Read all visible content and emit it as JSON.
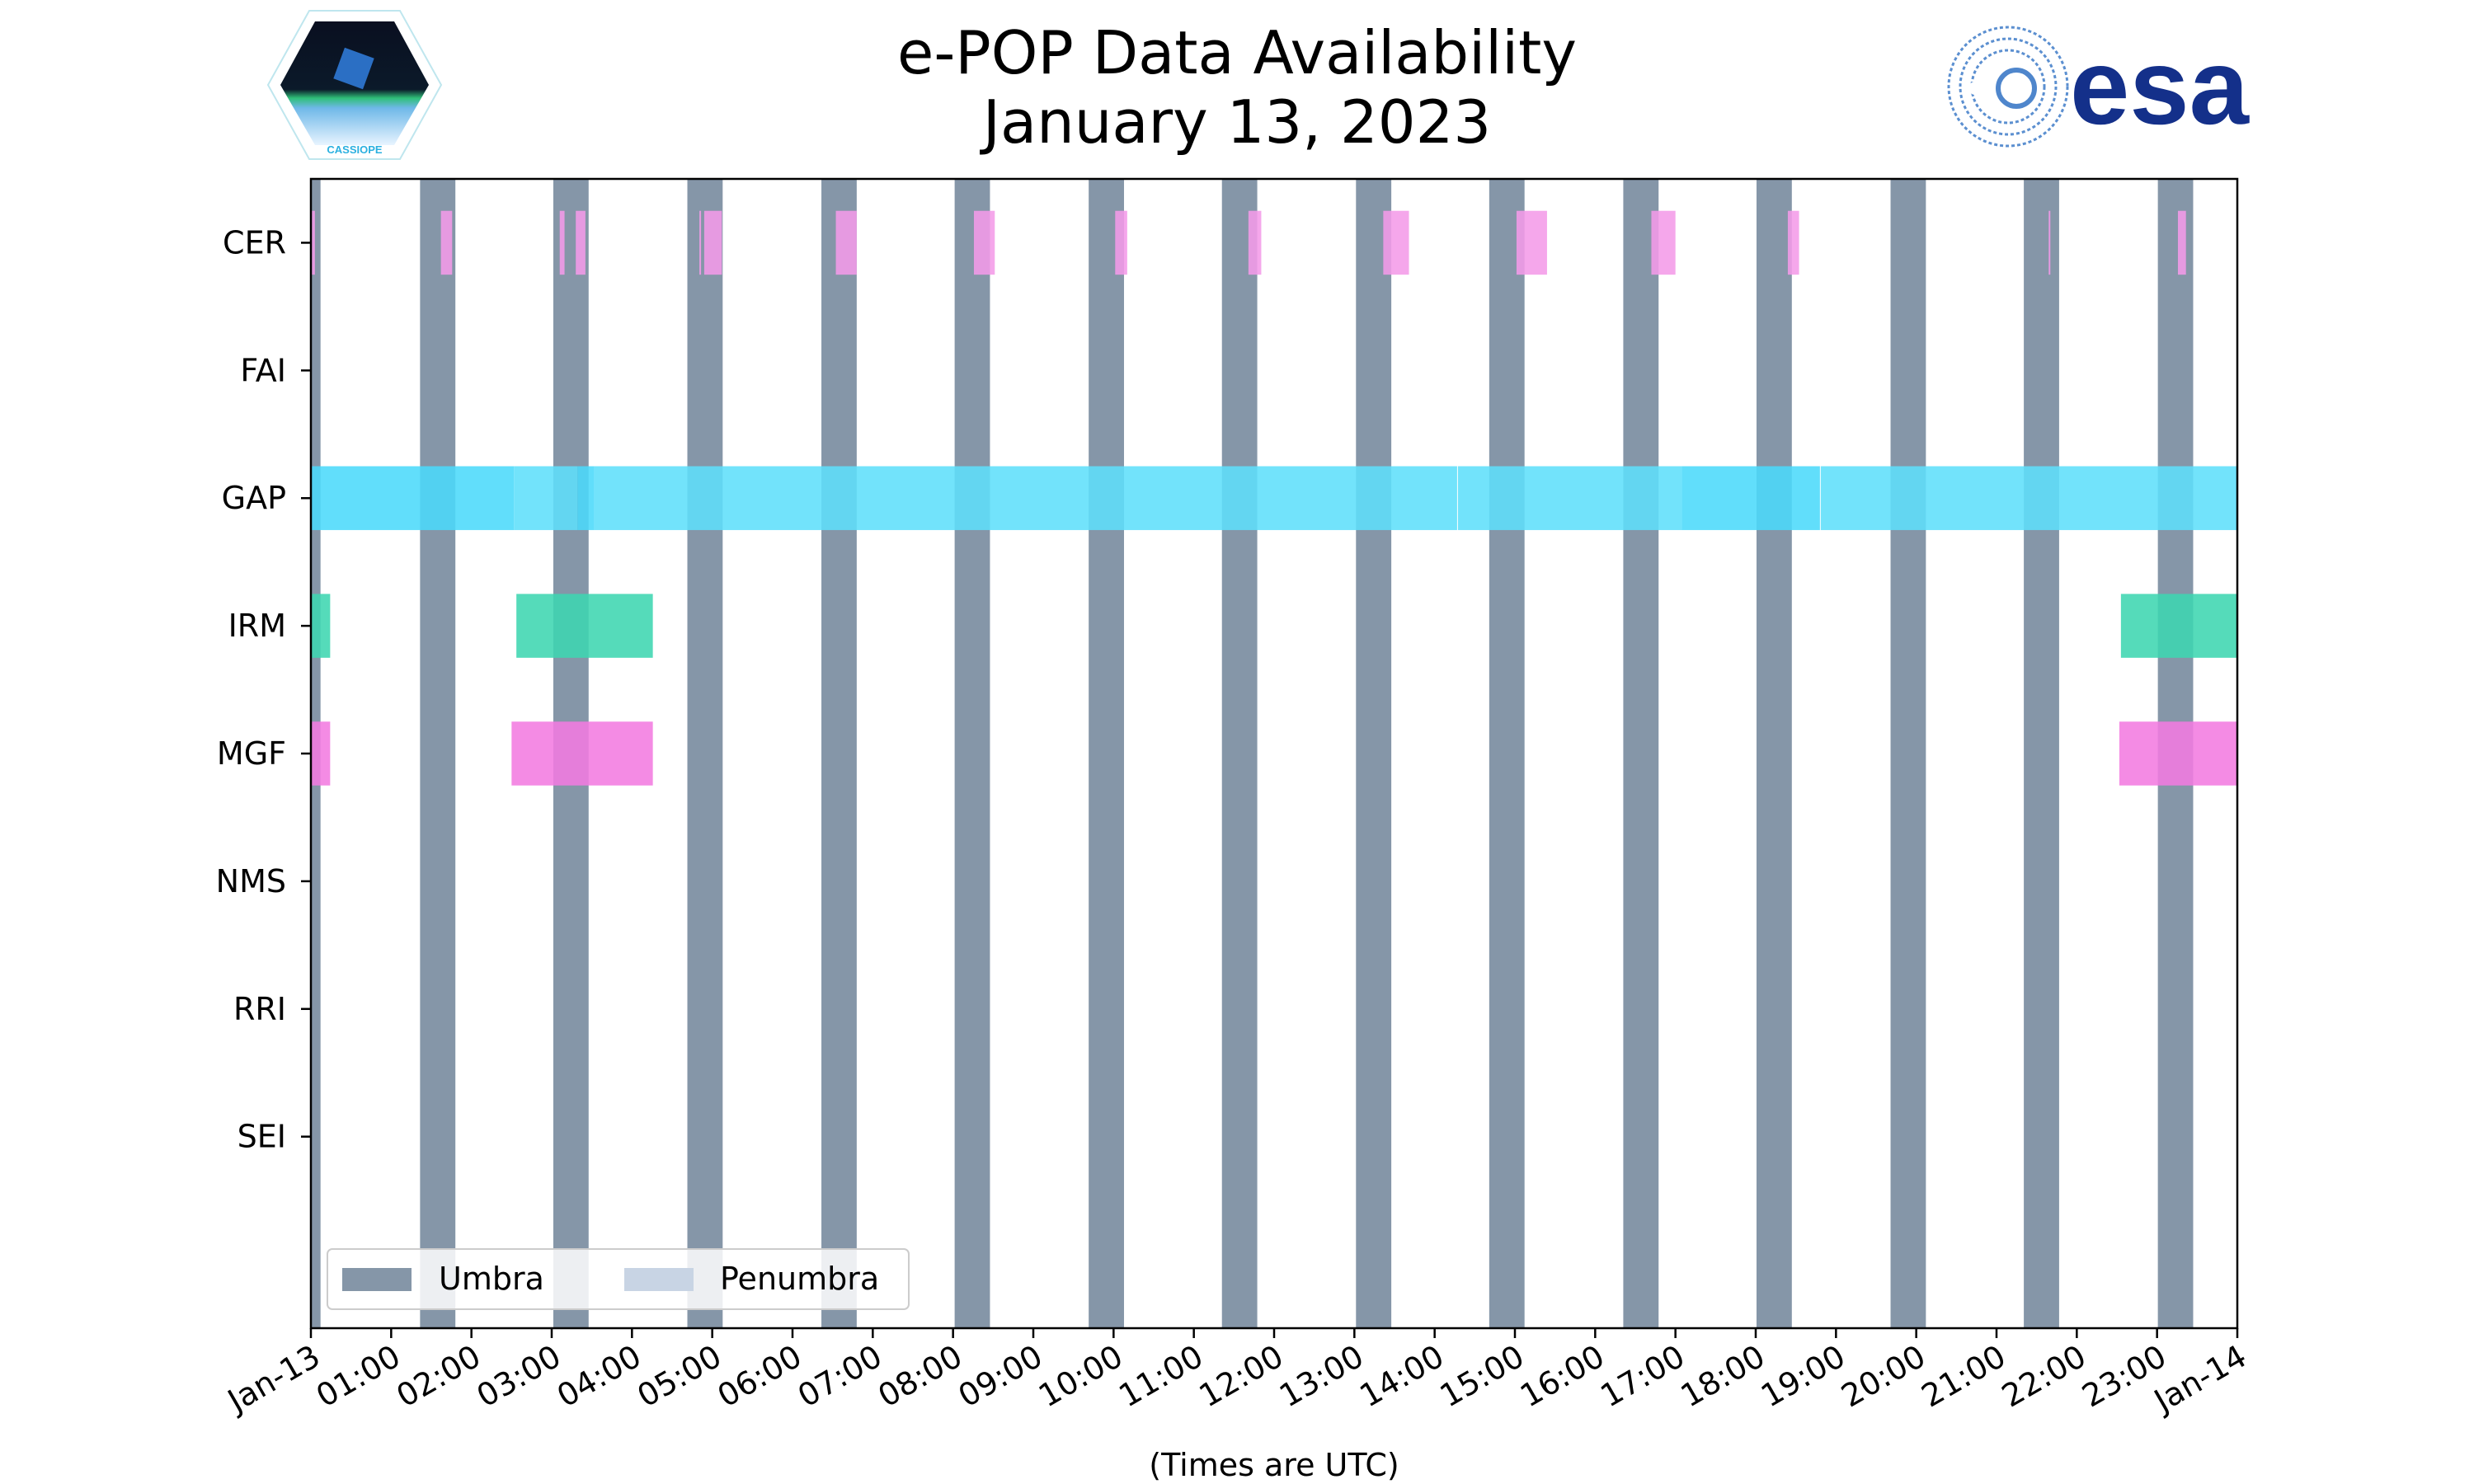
{
  "chart_data": {
    "type": "timeline",
    "title": "e-POP Data Availability",
    "subtitle": "January 13, 2023",
    "xlabel": "(Times are UTC)",
    "xlim_hours": [
      0,
      24
    ],
    "x_ticks": [
      "Jan-13",
      "01:00",
      "02:00",
      "03:00",
      "04:00",
      "05:00",
      "06:00",
      "07:00",
      "08:00",
      "09:00",
      "10:00",
      "11:00",
      "12:00",
      "13:00",
      "14:00",
      "15:00",
      "16:00",
      "17:00",
      "18:00",
      "19:00",
      "20:00",
      "21:00",
      "22:00",
      "23:00",
      "Jan-14"
    ],
    "categories": [
      "CER",
      "FAI",
      "GAP",
      "IRM",
      "MGF",
      "NMS",
      "RRI",
      "SEI"
    ],
    "legend": {
      "placement": "lower-left",
      "entries": [
        {
          "label": "Umbra",
          "color": "#8596a8"
        },
        {
          "label": "Penumbra",
          "color": "#c8d4e4"
        }
      ]
    },
    "umbra_hours": [
      [
        0,
        0.12
      ],
      [
        1.36,
        1.8
      ],
      [
        3.02,
        3.46
      ],
      [
        4.69,
        5.13
      ],
      [
        6.36,
        6.8
      ],
      [
        8.02,
        8.46
      ],
      [
        9.69,
        10.13
      ],
      [
        11.35,
        11.79
      ],
      [
        13.02,
        13.46
      ],
      [
        14.68,
        15.12
      ],
      [
        16.35,
        16.79
      ],
      [
        18.01,
        18.45
      ],
      [
        19.68,
        20.12
      ],
      [
        21.34,
        21.78
      ],
      [
        23.01,
        23.45
      ]
    ],
    "series": [
      {
        "name": "CER",
        "color": "#f49be8",
        "intervals": [
          [
            0,
            0.05
          ],
          [
            1.62,
            1.76
          ],
          [
            3.1,
            3.16
          ],
          [
            3.3,
            3.42
          ],
          [
            4.84,
            4.86
          ],
          [
            4.9,
            5.12
          ],
          [
            6.54,
            6.8
          ],
          [
            8.26,
            8.52
          ],
          [
            10.02,
            10.17
          ],
          [
            11.68,
            11.84
          ],
          [
            13.36,
            13.68
          ],
          [
            15.02,
            15.4
          ],
          [
            16.7,
            17.0
          ],
          [
            18.4,
            18.54
          ],
          [
            21.65,
            21.67
          ],
          [
            23.26,
            23.36
          ]
        ]
      },
      {
        "name": "FAI",
        "color": "#999999",
        "intervals": []
      },
      {
        "name": "GAP",
        "color": "#5fdffb",
        "intervals": [
          [
            0,
            2.53,
            "#4bdafb"
          ],
          [
            2.53,
            3.32
          ],
          [
            3.32,
            3.53,
            "#4bdafb"
          ],
          [
            3.53,
            14.28
          ],
          [
            14.29,
            17.08
          ],
          [
            17.08,
            18.8,
            "#4bdafb"
          ],
          [
            18.81,
            24
          ]
        ]
      },
      {
        "name": "IRM",
        "color": "#3ed6b0",
        "intervals": [
          [
            0,
            0.24
          ],
          [
            2.56,
            4.26
          ],
          [
            22.55,
            24
          ]
        ]
      },
      {
        "name": "MGF",
        "color": "#f27be0",
        "intervals": [
          [
            0,
            0.24
          ],
          [
            2.5,
            4.26
          ],
          [
            22.53,
            24
          ]
        ]
      },
      {
        "name": "NMS",
        "color": "#999999",
        "intervals": []
      },
      {
        "name": "RRI",
        "color": "#999999",
        "intervals": []
      },
      {
        "name": "SEI",
        "color": "#999999",
        "intervals": []
      }
    ]
  },
  "logos": {
    "left": "CASSIOPE",
    "right": "esa"
  }
}
